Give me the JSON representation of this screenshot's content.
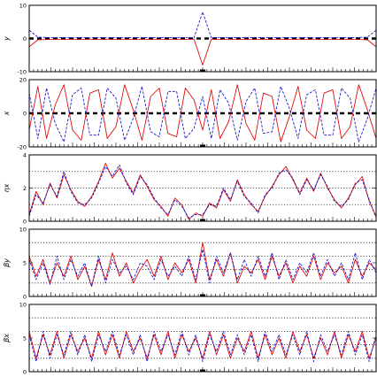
{
  "chart_data": [
    {
      "type": "line",
      "ylabel": "y",
      "ylim": [
        -10,
        10
      ],
      "yticks": [
        -10,
        0,
        10
      ],
      "grid_lines": [],
      "zero_line": true,
      "x": [
        0,
        5,
        10,
        15,
        20,
        25,
        30,
        35,
        40,
        45,
        50,
        55,
        60,
        65,
        70,
        75,
        80,
        85,
        90,
        95,
        100,
        105,
        110,
        115,
        120,
        125,
        130,
        135,
        140,
        145,
        150,
        155,
        160,
        165,
        170,
        175,
        180,
        185,
        190,
        195,
        200
      ],
      "series": [
        {
          "color": "#e00000",
          "dash": false,
          "values": [
            -2.5,
            -0.4,
            -0.3,
            -0.2,
            -0.3,
            -0.2,
            -0.3,
            -0.2,
            -0.3,
            -0.2,
            -0.3,
            -0.2,
            -0.3,
            -0.2,
            -0.3,
            -0.2,
            -0.3,
            -0.2,
            -0.3,
            -0.2,
            -8,
            -0.2,
            -0.3,
            -0.2,
            -0.3,
            -0.2,
            -0.3,
            -0.2,
            -0.3,
            -0.2,
            -0.3,
            -0.2,
            -0.3,
            -0.2,
            -0.3,
            -0.2,
            -0.3,
            -0.2,
            -0.3,
            -0.4,
            -2.5
          ]
        },
        {
          "color": "#1010d0",
          "dash": true,
          "values": [
            2.5,
            0.4,
            0.3,
            0.2,
            0.3,
            0.2,
            0.3,
            0.2,
            0.3,
            0.2,
            0.3,
            0.2,
            0.3,
            0.2,
            0.3,
            0.2,
            0.3,
            0.2,
            0.3,
            0.2,
            8,
            0.2,
            0.3,
            0.2,
            0.3,
            0.2,
            0.3,
            0.2,
            0.3,
            0.2,
            0.3,
            0.2,
            0.3,
            0.2,
            0.3,
            0.2,
            0.3,
            0.2,
            0.3,
            0.4,
            2.5
          ]
        }
      ]
    },
    {
      "type": "line",
      "ylabel": "x",
      "ylim": [
        -20,
        20
      ],
      "yticks": [
        -20,
        0,
        20
      ],
      "grid_lines": [],
      "zero_line": true,
      "x": [
        0,
        5,
        10,
        15,
        20,
        25,
        30,
        35,
        40,
        45,
        50,
        55,
        60,
        65,
        70,
        75,
        80,
        85,
        90,
        95,
        100,
        105,
        110,
        115,
        120,
        125,
        130,
        135,
        140,
        145,
        150,
        155,
        160,
        165,
        170,
        175,
        180,
        185,
        190,
        195,
        200
      ],
      "series": [
        {
          "color": "#e00000",
          "dash": false,
          "values": [
            -10,
            16,
            -15,
            5,
            17,
            -10,
            -16,
            12,
            14,
            -15,
            -8,
            17,
            2,
            -16,
            10,
            15,
            -12,
            -14,
            15,
            8,
            -10,
            14,
            -15,
            -5,
            17,
            -6,
            -16,
            12,
            10,
            -17,
            -2,
            16,
            -10,
            -15,
            12,
            14,
            -15,
            -8,
            17,
            2,
            -15
          ]
        },
        {
          "color": "#1010d0",
          "dash": true,
          "values": [
            12,
            -15,
            15,
            -6,
            -17,
            11,
            15,
            -13,
            -13,
            15,
            9,
            -16,
            -3,
            16,
            -11,
            -14,
            13,
            13,
            -15,
            -9,
            10,
            -15,
            14,
            6,
            -16,
            7,
            15,
            -12,
            -11,
            16,
            3,
            -15,
            11,
            14,
            -13,
            -13,
            15,
            9,
            -17,
            -3,
            15
          ]
        }
      ]
    },
    {
      "type": "line",
      "ylabel": "ηx",
      "ylim": [
        0,
        4
      ],
      "yticks": [
        0,
        2,
        4
      ],
      "grid_lines": [
        1,
        2,
        3
      ],
      "zero_line": false,
      "x": [
        0,
        4,
        8,
        12,
        16,
        20,
        24,
        28,
        32,
        36,
        40,
        44,
        48,
        52,
        56,
        60,
        64,
        68,
        72,
        76,
        80,
        84,
        88,
        92,
        96,
        100,
        104,
        108,
        112,
        116,
        120,
        124,
        128,
        132,
        136,
        140,
        144,
        148,
        152,
        156,
        160,
        164,
        168,
        172,
        176,
        180,
        184,
        188,
        192,
        196,
        200
      ],
      "series": [
        {
          "color": "#e00000",
          "dash": false,
          "values": [
            0.4,
            1.8,
            1.0,
            2.3,
            1.4,
            2.8,
            1.9,
            1.2,
            0.9,
            1.5,
            2.4,
            3.5,
            2.6,
            3.2,
            2.4,
            1.7,
            2.8,
            2.1,
            1.3,
            0.9,
            0.3,
            1.4,
            1.0,
            0.1,
            0.5,
            0.3,
            1.1,
            0.8,
            1.9,
            1.2,
            2.5,
            1.6,
            1.0,
            0.6,
            1.5,
            2.1,
            2.8,
            3.3,
            2.5,
            1.7,
            2.6,
            1.8,
            2.9,
            2.0,
            1.3,
            0.8,
            1.4,
            2.2,
            2.7,
            1.2,
            0.3
          ]
        },
        {
          "color": "#1010d0",
          "dash": true,
          "values": [
            0.3,
            1.6,
            1.1,
            2.2,
            1.5,
            3.0,
            1.8,
            1.1,
            1.0,
            1.4,
            2.3,
            3.3,
            2.7,
            3.4,
            2.3,
            1.6,
            2.7,
            2.2,
            1.4,
            0.8,
            0.4,
            1.3,
            0.9,
            0.2,
            0.4,
            0.4,
            1.0,
            0.9,
            2.0,
            1.3,
            2.4,
            1.5,
            1.1,
            0.5,
            1.6,
            2.0,
            2.9,
            3.1,
            2.6,
            1.6,
            2.5,
            1.9,
            2.8,
            2.1,
            1.2,
            0.9,
            1.3,
            2.3,
            2.5,
            1.3,
            0.2
          ]
        }
      ]
    },
    {
      "type": "line",
      "ylabel": "βy",
      "ylim": [
        0,
        10
      ],
      "yticks": [
        0,
        5,
        10
      ],
      "grid_lines": [
        2,
        4,
        6,
        8
      ],
      "zero_line": false,
      "x": [
        0,
        4,
        8,
        12,
        16,
        20,
        24,
        28,
        32,
        36,
        40,
        44,
        48,
        52,
        56,
        60,
        64,
        68,
        72,
        76,
        80,
        84,
        88,
        92,
        96,
        100,
        104,
        108,
        112,
        116,
        120,
        124,
        128,
        132,
        136,
        140,
        144,
        148,
        152,
        156,
        160,
        164,
        168,
        172,
        176,
        180,
        184,
        188,
        192,
        196,
        200
      ],
      "series": [
        {
          "color": "#e00000",
          "dash": false,
          "values": [
            6.0,
            3.0,
            5.5,
            2.0,
            5.0,
            3.0,
            6.0,
            2.5,
            4.5,
            1.5,
            5.5,
            2.5,
            6.5,
            3.0,
            5.0,
            2.0,
            4.0,
            5.5,
            3.0,
            6.0,
            2.5,
            5.0,
            3.5,
            5.5,
            2.0,
            8.0,
            2.5,
            5.5,
            3.0,
            6.5,
            2.0,
            4.5,
            3.5,
            5.5,
            2.5,
            6.0,
            3.0,
            5.0,
            2.0,
            4.5,
            3.0,
            6.0,
            2.5,
            5.0,
            3.5,
            4.5,
            2.0,
            5.5,
            3.0,
            5.0,
            4.0
          ]
        },
        {
          "color": "#1010d0",
          "dash": true,
          "values": [
            5.5,
            2.5,
            5.0,
            1.8,
            6.0,
            2.5,
            5.5,
            3.0,
            5.0,
            1.5,
            6.0,
            2.0,
            5.5,
            3.5,
            4.5,
            2.5,
            5.0,
            4.5,
            2.5,
            5.5,
            3.0,
            4.5,
            3.0,
            6.0,
            2.5,
            7.0,
            2.0,
            6.0,
            3.5,
            6.5,
            2.5,
            5.5,
            3.0,
            6.0,
            3.0,
            6.5,
            2.5,
            5.5,
            2.5,
            5.0,
            3.5,
            6.5,
            3.0,
            5.5,
            3.0,
            5.0,
            2.5,
            6.5,
            2.5,
            5.5,
            3.5
          ]
        }
      ]
    },
    {
      "type": "line",
      "ylabel": "βx",
      "ylim": [
        0,
        10
      ],
      "yticks": [
        0,
        5,
        10
      ],
      "grid_lines": [
        2,
        4,
        6,
        8
      ],
      "zero_line": false,
      "x": [
        0,
        4,
        8,
        12,
        16,
        20,
        24,
        28,
        32,
        36,
        40,
        44,
        48,
        52,
        56,
        60,
        64,
        68,
        72,
        76,
        80,
        84,
        88,
        92,
        96,
        100,
        104,
        108,
        112,
        116,
        120,
        124,
        128,
        132,
        136,
        140,
        144,
        148,
        152,
        156,
        160,
        164,
        168,
        172,
        176,
        180,
        184,
        188,
        192,
        196,
        200
      ],
      "series": [
        {
          "color": "#e00000",
          "dash": false,
          "values": [
            6.0,
            2.0,
            5.5,
            2.5,
            6.0,
            2.0,
            5.5,
            3.0,
            5.0,
            2.0,
            6.0,
            2.5,
            5.5,
            2.0,
            6.0,
            3.0,
            5.0,
            2.0,
            5.5,
            2.5,
            6.0,
            2.0,
            5.5,
            3.0,
            5.0,
            2.0,
            6.0,
            2.5,
            5.5,
            2.0,
            5.0,
            3.0,
            6.0,
            2.0,
            5.5,
            2.5,
            5.0,
            2.0,
            6.0,
            3.0,
            5.5,
            2.0,
            5.0,
            2.5,
            6.0,
            2.0,
            5.5,
            3.0,
            6.0,
            2.0,
            5.0
          ]
        },
        {
          "color": "#1010d0",
          "dash": true,
          "values": [
            5.5,
            1.5,
            6.0,
            2.0,
            5.5,
            2.5,
            6.0,
            2.5,
            5.5,
            1.5,
            5.5,
            3.0,
            6.0,
            2.5,
            5.5,
            2.5,
            5.5,
            1.5,
            6.0,
            3.0,
            5.5,
            2.5,
            6.0,
            2.5,
            5.5,
            1.5,
            5.5,
            3.0,
            6.0,
            2.5,
            5.5,
            2.5,
            5.5,
            1.5,
            6.0,
            3.0,
            5.5,
            2.5,
            5.5,
            2.5,
            6.0,
            1.5,
            5.5,
            3.0,
            5.5,
            2.5,
            6.0,
            2.5,
            5.5,
            1.5,
            5.5
          ]
        }
      ]
    }
  ]
}
